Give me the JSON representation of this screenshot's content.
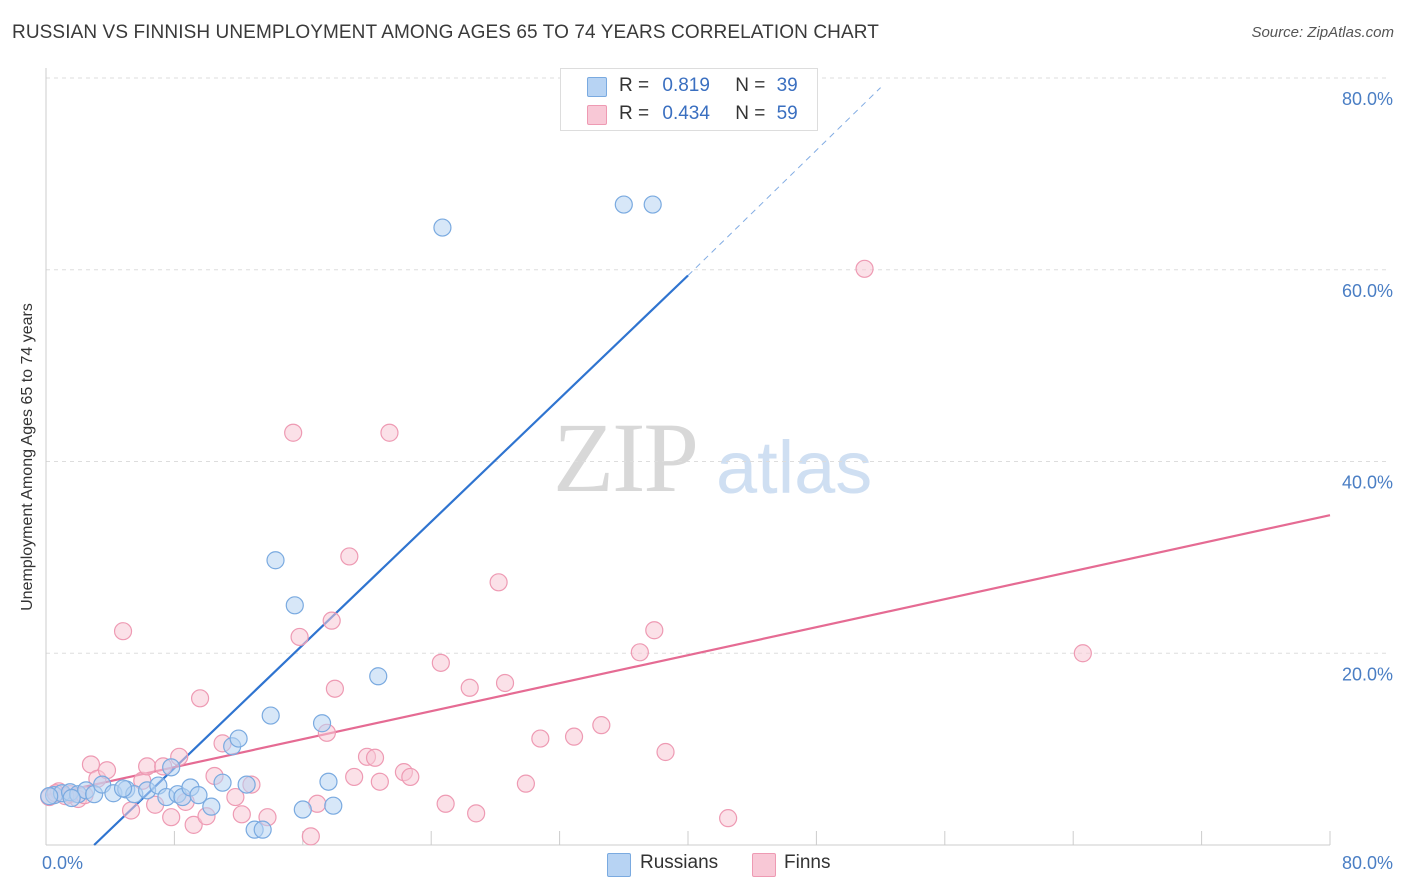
{
  "header": {
    "title": "RUSSIAN VS FINNISH UNEMPLOYMENT AMONG AGES 65 TO 74 YEARS CORRELATION CHART",
    "source": "Source: ZipAtlas.com"
  },
  "watermark": {
    "zip": "ZIP",
    "atlas": "atlas"
  },
  "legend": {
    "rows": [
      {
        "r_label": "R =",
        "r_value": "0.819",
        "n_label": "N =",
        "n_value": "39"
      },
      {
        "r_label": "R =",
        "r_value": "0.434",
        "n_label": "N =",
        "n_value": "59"
      }
    ]
  },
  "bottom_legend": {
    "russians": "Russians",
    "finns": "Finns"
  },
  "colors": {
    "russians_fill": "#b7d3f3",
    "russians_stroke": "#7aaae0",
    "russians_line": "#2f74d0",
    "finns_fill": "#f8c8d6",
    "finns_stroke": "#ee9ab3",
    "finns_line": "#e56b93",
    "grid": "#dddddd",
    "tick_text": "#4a7ec4"
  },
  "chart_data": {
    "type": "scatter",
    "title": "RUSSIAN VS FINNISH UNEMPLOYMENT AMONG AGES 65 TO 74 YEARS CORRELATION CHART",
    "xlabel": "",
    "ylabel": "Unemployment Among Ages 65 to 74 years",
    "xlim": [
      0,
      80
    ],
    "ylim": [
      0,
      80
    ],
    "x_tick_labels": [
      "0.0%",
      "80.0%"
    ],
    "y_tick_labels": [
      "20.0%",
      "40.0%",
      "60.0%",
      "80.0%"
    ],
    "y_ticks": [
      20,
      40,
      60,
      80
    ],
    "series": [
      {
        "name": "Russians",
        "r": 0.819,
        "n": 39,
        "trend": {
          "x0": 3.0,
          "y0": 0.0,
          "x1": 40.0,
          "y1": 59.4,
          "dash_x1": 52.0,
          "dash_y1": 79.0
        },
        "points": [
          [
            0.5,
            5.2
          ],
          [
            1.0,
            5.4
          ],
          [
            1.5,
            5.5
          ],
          [
            2.0,
            5.3
          ],
          [
            2.5,
            5.7
          ],
          [
            3.0,
            5.3
          ],
          [
            3.5,
            6.3
          ],
          [
            4.2,
            5.4
          ],
          [
            5.0,
            5.8
          ],
          [
            5.5,
            5.3
          ],
          [
            6.3,
            5.7
          ],
          [
            7.0,
            6.2
          ],
          [
            7.5,
            5.0
          ],
          [
            7.8,
            8.1
          ],
          [
            8.2,
            5.3
          ],
          [
            8.5,
            5.0
          ],
          [
            9.0,
            6.0
          ],
          [
            9.5,
            5.2
          ],
          [
            10.3,
            4.0
          ],
          [
            11.0,
            6.5
          ],
          [
            11.6,
            10.3
          ],
          [
            12.0,
            11.1
          ],
          [
            12.5,
            6.3
          ],
          [
            13.0,
            1.6
          ],
          [
            13.5,
            1.6
          ],
          [
            14.0,
            13.5
          ],
          [
            14.3,
            29.7
          ],
          [
            15.5,
            25.0
          ],
          [
            16.0,
            3.7
          ],
          [
            17.2,
            12.7
          ],
          [
            17.6,
            6.6
          ],
          [
            17.9,
            4.1
          ],
          [
            20.7,
            17.6
          ],
          [
            24.7,
            64.4
          ],
          [
            36.0,
            66.8
          ],
          [
            37.8,
            66.8
          ],
          [
            0.2,
            5.1
          ],
          [
            1.6,
            4.9
          ],
          [
            4.8,
            5.9
          ]
        ]
      },
      {
        "name": "Finns",
        "r": 0.434,
        "n": 59,
        "trend": {
          "x0": 0.0,
          "y0": 5.2,
          "x1": 80.0,
          "y1": 34.4
        },
        "points": [
          [
            0.2,
            5.0
          ],
          [
            0.8,
            5.6
          ],
          [
            1.5,
            5.3
          ],
          [
            2.0,
            4.8
          ],
          [
            2.8,
            8.4
          ],
          [
            3.2,
            6.9
          ],
          [
            3.8,
            7.8
          ],
          [
            4.8,
            22.3
          ],
          [
            5.3,
            3.6
          ],
          [
            6.0,
            6.7
          ],
          [
            6.3,
            8.2
          ],
          [
            6.8,
            4.2
          ],
          [
            7.3,
            8.2
          ],
          [
            7.8,
            2.9
          ],
          [
            8.3,
            9.2
          ],
          [
            8.7,
            4.5
          ],
          [
            9.2,
            2.1
          ],
          [
            9.6,
            15.3
          ],
          [
            10.0,
            3.0
          ],
          [
            10.5,
            7.2
          ],
          [
            11.0,
            10.6
          ],
          [
            11.8,
            5.0
          ],
          [
            12.2,
            3.2
          ],
          [
            12.8,
            6.3
          ],
          [
            13.8,
            2.9
          ],
          [
            15.4,
            43.0
          ],
          [
            15.8,
            21.7
          ],
          [
            16.5,
            0.9
          ],
          [
            16.9,
            4.3
          ],
          [
            17.5,
            11.7
          ],
          [
            17.8,
            23.4
          ],
          [
            18.0,
            16.3
          ],
          [
            18.9,
            30.1
          ],
          [
            19.2,
            7.1
          ],
          [
            20.0,
            9.2
          ],
          [
            20.5,
            9.1
          ],
          [
            20.8,
            6.6
          ],
          [
            21.4,
            43.0
          ],
          [
            22.3,
            7.6
          ],
          [
            22.7,
            7.1
          ],
          [
            24.6,
            19.0
          ],
          [
            24.9,
            4.3
          ],
          [
            26.4,
            16.4
          ],
          [
            26.8,
            3.3
          ],
          [
            28.2,
            27.4
          ],
          [
            28.6,
            16.9
          ],
          [
            29.9,
            6.4
          ],
          [
            30.8,
            11.1
          ],
          [
            32.9,
            11.3
          ],
          [
            34.6,
            12.5
          ],
          [
            37.0,
            20.1
          ],
          [
            37.9,
            22.4
          ],
          [
            38.6,
            9.7
          ],
          [
            42.5,
            2.8
          ],
          [
            51.0,
            60.1
          ],
          [
            64.6,
            20.0
          ],
          [
            1.2,
            5.1
          ],
          [
            2.4,
            5.2
          ],
          [
            0.6,
            5.4
          ]
        ]
      }
    ]
  }
}
